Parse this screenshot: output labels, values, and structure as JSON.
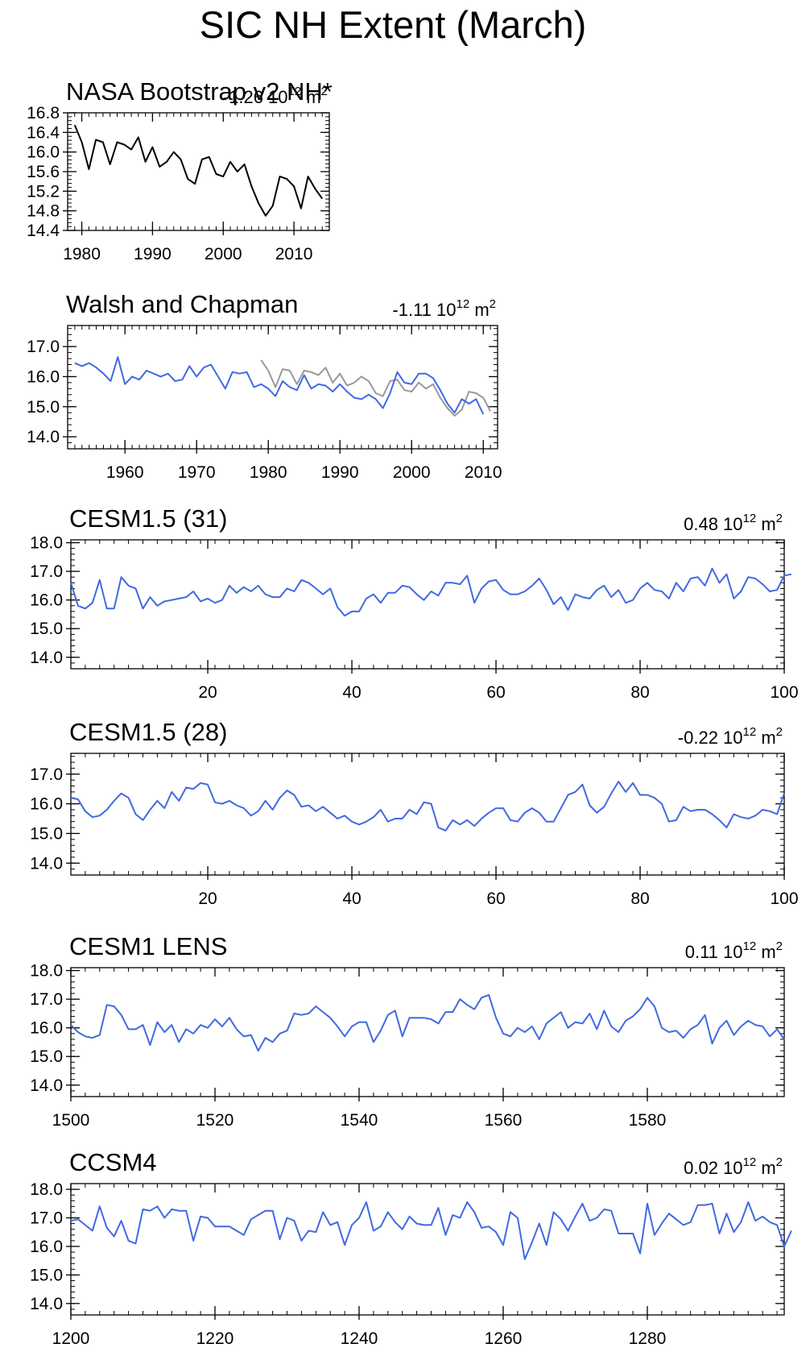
{
  "title": "SIC NH Extent (March)",
  "colors": {
    "model": "#4169e1",
    "obs_gray": "#999999",
    "obs_black": "#000000"
  },
  "chart_data": [
    {
      "type": "line",
      "title": "NASA Bootstrap v2 NH*",
      "trend": {
        "value": "-1.26",
        "unit_base": " 10",
        "unit_exp": "12",
        "unit_tail": " m",
        "unit_tail_exp": "2"
      },
      "xlim": [
        1978,
        2015
      ],
      "ylim": [
        14.4,
        16.8
      ],
      "xticks": [
        1980,
        1990,
        2000,
        2010
      ],
      "yticks": [
        14.4,
        14.8,
        15.2,
        15.6,
        16.0,
        16.4,
        16.8
      ],
      "ytick_labels": [
        "14.4",
        "14.8",
        "15.2",
        "15.6",
        "16.0",
        "16.4",
        "16.8"
      ],
      "series": [
        {
          "color": "#000000",
          "x_start": 1979,
          "values": [
            16.55,
            16.2,
            15.65,
            16.25,
            16.2,
            15.75,
            16.2,
            16.15,
            16.05,
            16.3,
            15.8,
            16.1,
            15.7,
            15.8,
            16.0,
            15.85,
            15.45,
            15.35,
            15.85,
            15.9,
            15.55,
            15.5,
            15.8,
            15.6,
            15.75,
            15.3,
            14.95,
            14.7,
            14.9,
            15.5,
            15.45,
            15.3,
            14.85,
            15.5,
            15.25,
            15.05
          ]
        }
      ]
    },
    {
      "type": "line",
      "title": "Walsh and Chapman",
      "trend": {
        "value": "-1.11",
        "unit_base": " 10",
        "unit_exp": "12",
        "unit_tail": " m",
        "unit_tail_exp": "2"
      },
      "xlim": [
        1952,
        2012
      ],
      "ylim": [
        13.6,
        17.7
      ],
      "xticks": [
        1960,
        1970,
        1980,
        1990,
        2000,
        2010
      ],
      "yticks": [
        14.0,
        15.0,
        16.0,
        17.0
      ],
      "ytick_labels": [
        "14.0",
        "15.0",
        "16.0",
        "17.0"
      ],
      "series": [
        {
          "color": "#999999",
          "x_start": 1979,
          "values": [
            16.55,
            16.2,
            15.65,
            16.25,
            16.2,
            15.75,
            16.2,
            16.15,
            16.05,
            16.3,
            15.8,
            16.1,
            15.7,
            15.8,
            16.0,
            15.85,
            15.45,
            15.35,
            15.85,
            15.9,
            15.55,
            15.5,
            15.8,
            15.6,
            15.75,
            15.3,
            14.95,
            14.7,
            14.9,
            15.5,
            15.45,
            15.3,
            14.85
          ]
        },
        {
          "color": "#4169e1",
          "x_start": 1953,
          "values": [
            16.45,
            16.35,
            16.45,
            16.3,
            16.1,
            15.85,
            16.65,
            15.75,
            16.0,
            15.9,
            16.2,
            16.1,
            16.0,
            16.1,
            15.85,
            15.9,
            16.35,
            16.0,
            16.3,
            16.4,
            16.0,
            15.6,
            16.15,
            16.1,
            16.15,
            15.65,
            15.75,
            15.6,
            15.35,
            15.85,
            15.65,
            15.55,
            16.05,
            15.6,
            15.75,
            15.7,
            15.5,
            15.75,
            15.5,
            15.3,
            15.25,
            15.4,
            15.25,
            14.95,
            15.45,
            16.15,
            15.8,
            15.75,
            16.1,
            16.1,
            15.95,
            15.55,
            15.1,
            14.8,
            15.25,
            15.1,
            15.25,
            14.75
          ]
        }
      ]
    },
    {
      "type": "line",
      "title": "CESM1.5 (31)",
      "trend": {
        "value": "0.48",
        "unit_base": " 10",
        "unit_exp": "12",
        "unit_tail": " m",
        "unit_tail_exp": "2"
      },
      "xlim": [
        1,
        100
      ],
      "ylim": [
        13.6,
        18.1
      ],
      "xticks": [
        20,
        40,
        60,
        80,
        100
      ],
      "yticks": [
        14.0,
        15.0,
        16.0,
        17.0,
        18.0
      ],
      "ytick_labels": [
        "14.0",
        "15.0",
        "16.0",
        "17.0",
        "18.0"
      ],
      "series": [
        {
          "color": "#4169e1",
          "x_start": 1,
          "values": [
            16.6,
            15.8,
            15.7,
            15.9,
            16.7,
            15.7,
            15.7,
            16.8,
            16.5,
            16.4,
            15.7,
            16.1,
            15.8,
            15.95,
            16.0,
            16.05,
            16.1,
            16.3,
            15.95,
            16.05,
            15.9,
            16.0,
            16.5,
            16.25,
            16.45,
            16.3,
            16.5,
            16.2,
            16.1,
            16.1,
            16.4,
            16.3,
            16.7,
            16.6,
            16.4,
            16.2,
            16.4,
            15.75,
            15.45,
            15.6,
            15.6,
            16.05,
            16.2,
            15.9,
            16.25,
            16.25,
            16.5,
            16.45,
            16.2,
            16.0,
            16.3,
            16.15,
            16.6,
            16.6,
            16.55,
            16.85,
            15.9,
            16.4,
            16.65,
            16.7,
            16.35,
            16.2,
            16.2,
            16.3,
            16.5,
            16.75,
            16.35,
            15.85,
            16.1,
            15.65,
            16.2,
            16.1,
            16.05,
            16.35,
            16.5,
            16.1,
            16.35,
            15.9,
            16.0,
            16.4,
            16.6,
            16.35,
            16.3,
            16.05,
            16.6,
            16.3,
            16.75,
            16.8,
            16.5,
            17.1,
            16.6,
            16.9,
            16.05,
            16.3,
            16.8,
            16.75,
            16.55,
            16.3,
            16.35,
            16.85,
            16.9
          ]
        }
      ]
    },
    {
      "type": "line",
      "title": "CESM1.5 (28)",
      "trend": {
        "value": "-0.22",
        "unit_base": " 10",
        "unit_exp": "12",
        "unit_tail": " m",
        "unit_tail_exp": "2"
      },
      "xlim": [
        1,
        100
      ],
      "ylim": [
        13.6,
        17.7
      ],
      "xticks": [
        20,
        40,
        60,
        80,
        100
      ],
      "yticks": [
        14.0,
        15.0,
        16.0,
        17.0
      ],
      "ytick_labels": [
        "14.0",
        "15.0",
        "16.0",
        "17.0"
      ],
      "series": [
        {
          "color": "#4169e1",
          "x_start": 1,
          "values": [
            16.2,
            16.15,
            15.75,
            15.55,
            15.6,
            15.8,
            16.1,
            16.35,
            16.2,
            15.65,
            15.45,
            15.8,
            16.1,
            15.85,
            16.4,
            16.1,
            16.55,
            16.5,
            16.7,
            16.65,
            16.05,
            16.0,
            16.1,
            15.95,
            15.85,
            15.6,
            15.75,
            16.1,
            15.8,
            16.2,
            16.45,
            16.3,
            15.9,
            15.95,
            15.75,
            15.9,
            15.7,
            15.5,
            15.6,
            15.4,
            15.3,
            15.4,
            15.55,
            15.8,
            15.4,
            15.5,
            15.5,
            15.8,
            15.65,
            16.05,
            16.0,
            15.2,
            15.1,
            15.45,
            15.3,
            15.45,
            15.25,
            15.5,
            15.7,
            15.85,
            15.85,
            15.45,
            15.4,
            15.7,
            15.85,
            15.7,
            15.4,
            15.4,
            15.85,
            16.3,
            16.4,
            16.65,
            15.95,
            15.7,
            15.9,
            16.35,
            16.75,
            16.4,
            16.7,
            16.3,
            16.3,
            16.2,
            16.0,
            15.4,
            15.45,
            15.9,
            15.75,
            15.8,
            15.8,
            15.65,
            15.45,
            15.2,
            15.65,
            15.55,
            15.5,
            15.6,
            15.8,
            15.75,
            15.65,
            16.35
          ]
        }
      ]
    },
    {
      "type": "line",
      "title": "CESM1 LENS",
      "trend": {
        "value": "0.11",
        "unit_base": " 10",
        "unit_exp": "12",
        "unit_tail": " m",
        "unit_tail_exp": "2"
      },
      "xlim": [
        1500,
        1599
      ],
      "ylim": [
        13.6,
        18.1
      ],
      "xticks": [
        1500,
        1520,
        1540,
        1560,
        1580
      ],
      "yticks": [
        14.0,
        15.0,
        16.0,
        17.0,
        18.0
      ],
      "ytick_labels": [
        "14.0",
        "15.0",
        "16.0",
        "17.0",
        "18.0"
      ],
      "series": [
        {
          "color": "#4169e1",
          "x_start": 1500,
          "values": [
            16.1,
            15.85,
            15.7,
            15.65,
            15.75,
            16.8,
            16.75,
            16.45,
            15.95,
            15.95,
            16.1,
            15.4,
            16.2,
            15.85,
            16.1,
            15.5,
            15.95,
            15.8,
            16.1,
            16.0,
            16.3,
            16.05,
            16.35,
            15.95,
            15.7,
            15.75,
            15.2,
            15.65,
            15.5,
            15.8,
            15.9,
            16.5,
            16.45,
            16.5,
            16.75,
            16.55,
            16.35,
            16.05,
            15.7,
            16.05,
            16.2,
            16.2,
            15.5,
            15.9,
            16.45,
            16.6,
            15.7,
            16.35,
            16.35,
            16.35,
            16.3,
            16.15,
            16.55,
            16.55,
            17.0,
            16.8,
            16.65,
            17.05,
            17.15,
            16.35,
            15.8,
            15.7,
            16.0,
            15.85,
            16.05,
            15.6,
            16.15,
            16.35,
            16.55,
            16.0,
            16.2,
            16.15,
            16.5,
            15.95,
            16.6,
            16.05,
            15.85,
            16.25,
            16.4,
            16.65,
            17.05,
            16.75,
            16.0,
            15.85,
            15.9,
            15.65,
            15.95,
            16.1,
            16.45,
            15.45,
            16.0,
            16.25,
            15.75,
            16.05,
            16.25,
            16.1,
            16.05,
            15.7,
            15.95,
            15.6
          ]
        }
      ]
    },
    {
      "type": "line",
      "title": "CCSM4",
      "trend": {
        "value": "0.02",
        "unit_base": " 10",
        "unit_exp": "12",
        "unit_tail": " m",
        "unit_tail_exp": "2"
      },
      "xlim": [
        1200,
        1299
      ],
      "ylim": [
        13.6,
        18.2
      ],
      "xticks": [
        1200,
        1220,
        1240,
        1260,
        1280
      ],
      "yticks": [
        14.0,
        15.0,
        16.0,
        17.0,
        18.0
      ],
      "ytick_labels": [
        "14.0",
        "15.0",
        "16.0",
        "17.0",
        "18.0"
      ],
      "series": [
        {
          "color": "#4169e1",
          "x_start": 1200,
          "values": [
            16.9,
            16.95,
            16.75,
            16.55,
            17.4,
            16.65,
            16.35,
            16.9,
            16.2,
            16.1,
            17.3,
            17.25,
            17.4,
            17.0,
            17.3,
            17.25,
            17.25,
            16.2,
            17.05,
            17.0,
            16.7,
            16.7,
            16.7,
            16.55,
            16.4,
            16.95,
            17.1,
            17.25,
            17.25,
            16.25,
            17.0,
            16.9,
            16.2,
            16.55,
            16.5,
            17.2,
            16.75,
            16.85,
            16.05,
            16.75,
            17.0,
            17.55,
            16.55,
            16.7,
            17.2,
            16.85,
            16.6,
            17.05,
            16.8,
            16.75,
            16.75,
            17.35,
            16.4,
            17.1,
            17.0,
            17.55,
            17.2,
            16.65,
            16.7,
            16.5,
            16.05,
            17.2,
            17.0,
            15.55,
            16.15,
            16.8,
            16.05,
            17.2,
            16.95,
            16.55,
            17.05,
            17.5,
            16.9,
            17.0,
            17.3,
            17.25,
            16.45,
            16.45,
            16.45,
            15.75,
            17.5,
            16.4,
            16.8,
            17.15,
            16.95,
            16.75,
            16.85,
            17.45,
            17.45,
            17.5,
            16.45,
            17.15,
            16.5,
            16.85,
            17.55,
            16.9,
            17.05,
            16.85,
            16.75,
            16.0,
            16.55
          ]
        }
      ]
    }
  ]
}
